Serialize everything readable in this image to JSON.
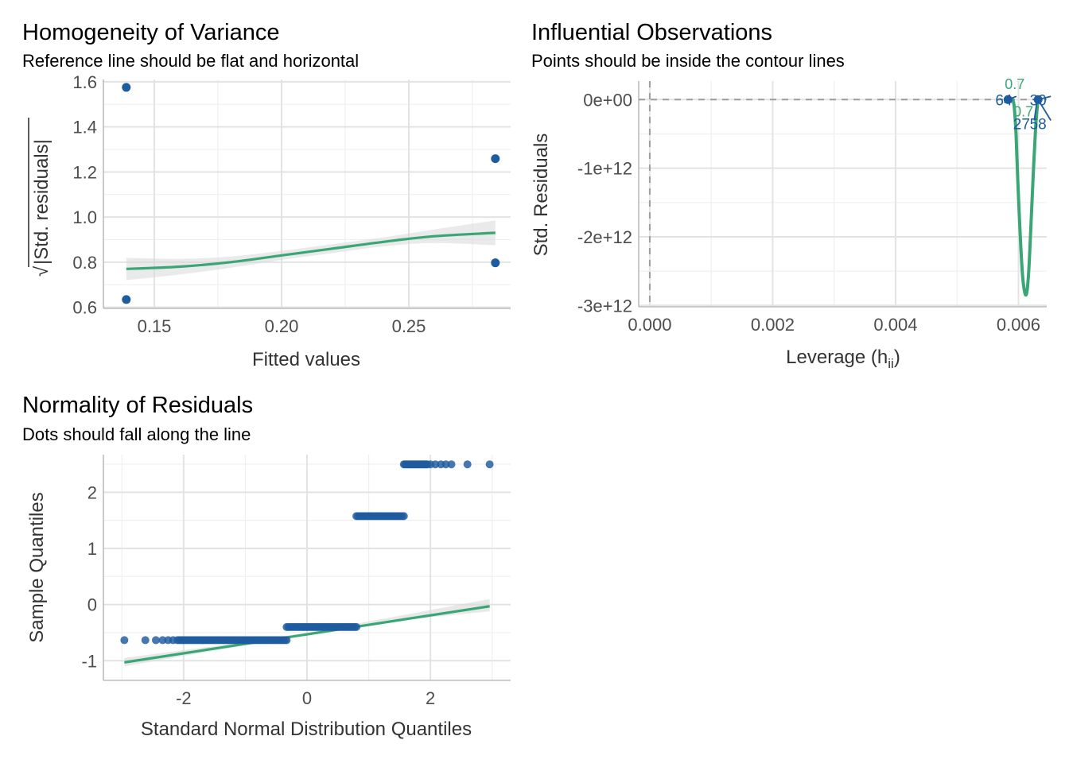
{
  "colors": {
    "points": "#1f5b9f",
    "line": "#3aa676",
    "band": "#d9d9d9",
    "grid": "#e3e3e3",
    "refline": "#9e9e9e"
  },
  "panels": {
    "homogeneity": {
      "title": "Homogeneity of Variance",
      "subtitle": "Reference line should be flat and horizontal"
    },
    "influential": {
      "title": "Influential Observations",
      "subtitle": "Points should be inside the contour lines"
    },
    "normality": {
      "title": "Normality of Residuals",
      "subtitle": "Dots should fall along the line"
    }
  },
  "chart_data": [
    {
      "id": "homogeneity",
      "type": "scatter",
      "title": "Homogeneity of Variance",
      "subtitle": "Reference line should be flat and horizontal",
      "xlabel": "Fitted values",
      "ylabel_radical": "√",
      "ylabel": "|Std. residuals|",
      "xlim": [
        0.13,
        0.29
      ],
      "ylim": [
        0.595,
        1.61
      ],
      "xticks": [
        0.15,
        0.2,
        0.25
      ],
      "xtick_labels": [
        "0.15",
        "0.20",
        "0.25"
      ],
      "yticks": [
        0.6,
        0.8,
        1.0,
        1.2,
        1.4,
        1.6
      ],
      "ytick_labels": [
        "0.6",
        "0.8",
        "1.0",
        "1.2",
        "1.4",
        "1.6"
      ],
      "points": [
        {
          "x": 0.139,
          "y": 1.575
        },
        {
          "x": 0.139,
          "y": 0.634
        },
        {
          "x": 0.284,
          "y": 1.259
        },
        {
          "x": 0.284,
          "y": 0.797
        }
      ],
      "smooth": {
        "x": [
          0.139,
          0.16,
          0.18,
          0.2,
          0.22,
          0.24,
          0.26,
          0.284
        ],
        "y": [
          0.77,
          0.78,
          0.8,
          0.83,
          0.86,
          0.89,
          0.915,
          0.93
        ],
        "band_lo": [
          0.72,
          0.745,
          0.775,
          0.81,
          0.84,
          0.87,
          0.885,
          0.875
        ],
        "band_hi": [
          0.82,
          0.815,
          0.825,
          0.85,
          0.88,
          0.91,
          0.945,
          0.985
        ]
      }
    },
    {
      "id": "influential",
      "type": "scatter",
      "title": "Influential Observations",
      "subtitle": "Points should be inside the contour lines",
      "xlabel": "Leverage (h",
      "xlabel_sub": "ii",
      "xlabel_end": ")",
      "ylabel": "Std. Residuals",
      "xlim": [
        -0.00018,
        0.00646
      ],
      "ylim": [
        -3020000000000.0,
        270000000000.0
      ],
      "xticks": [
        0,
        0.002,
        0.004,
        0.006
      ],
      "xtick_labels": [
        "0.000",
        "0.002",
        "0.004",
        "0.006"
      ],
      "yticks": [
        0,
        -1000000000000.0,
        -2000000000000.0,
        -3000000000000.0
      ],
      "ytick_labels": [
        "0e+00",
        "-1e+12",
        "-2e+12",
        "-3e+12"
      ],
      "reflines": {
        "x": 0,
        "y": 0
      },
      "points": [
        {
          "x": 0.00583,
          "y": 0
        },
        {
          "x": 0.00632,
          "y": 0
        }
      ],
      "point_labels": [
        {
          "text": "64",
          "x": 0.00576,
          "y": 0,
          "lx": 0.00582,
          "ly": 0
        },
        {
          "text": "30",
          "x": 0.00632,
          "y": 0,
          "lx": 0.00632,
          "ly": 0
        },
        {
          "text": "27",
          "x": 0.00605,
          "y": -350000000000.0,
          "lx": 0.0063,
          "ly": -30000000000.0
        },
        {
          "text": "58",
          "x": 0.00632,
          "y": -350000000000.0,
          "lx": 0.00632,
          "ly": 0
        }
      ],
      "contour_labels": [
        {
          "text": "0.7",
          "x": 0.00594,
          "y": 200000000000.0
        },
        {
          "text": "0.7",
          "x": 0.00608,
          "y": -200000000000.0
        }
      ],
      "contour": {
        "x": [
          0.0059,
          0.00593,
          0.00596,
          0.00599,
          0.00603,
          0.00607,
          0.00612,
          0.00616,
          0.0062,
          0.00624,
          0.00628,
          0.00632
        ],
        "y": [
          20000000000.0,
          -100000000000.0,
          -500000000000.0,
          -1200000000000.0,
          -2000000000000.0,
          -2600000000000.0,
          -2850000000000.0,
          -2600000000000.0,
          -1900000000000.0,
          -1100000000000.0,
          -400000000000.0,
          20000000000.0
        ]
      }
    },
    {
      "id": "normality",
      "type": "scatter",
      "title": "Normality of Residuals",
      "subtitle": "Dots should fall along the line",
      "xlabel": "Standard Normal Distribution Quantiles",
      "ylabel": "Sample Quantiles",
      "xlim": [
        -3.3,
        3.3
      ],
      "ylim": [
        -1.35,
        2.67
      ],
      "xticks": [
        -2,
        0,
        2
      ],
      "xtick_labels": [
        "-2",
        "0",
        "2"
      ],
      "yticks": [
        -1,
        0,
        1,
        2
      ],
      "ytick_labels": [
        "-1",
        "0",
        "1",
        "2"
      ],
      "groups": [
        {
          "y": -0.634,
          "x": [
            -2.96,
            -2.62,
            -2.45,
            -2.34,
            -2.25,
            -2.17
          ],
          "x_from": -2.1,
          "x_to": -0.33,
          "n": 60
        },
        {
          "y": -0.4,
          "x": [],
          "x_from": -0.33,
          "x_to": 0.8,
          "n": 40
        },
        {
          "y": 1.575,
          "x": [],
          "x_from": 0.8,
          "x_to": 1.57,
          "n": 28
        },
        {
          "y": 2.497,
          "x": [
            2.0,
            2.08,
            2.17,
            2.25,
            2.34,
            2.6,
            2.96
          ],
          "x_from": 1.57,
          "x_to": 1.95,
          "n": 20
        }
      ],
      "reference": {
        "x": [
          -2.96,
          2.96
        ],
        "y": [
          -1.03,
          -0.03
        ]
      },
      "band": {
        "x": [
          -2.96,
          -1.5,
          0,
          1.5,
          2.96
        ],
        "lo": [
          -1.1,
          -0.82,
          -0.55,
          -0.28,
          -0.12
        ],
        "hi": [
          -0.95,
          -0.74,
          -0.5,
          -0.2,
          0.1
        ]
      }
    }
  ]
}
